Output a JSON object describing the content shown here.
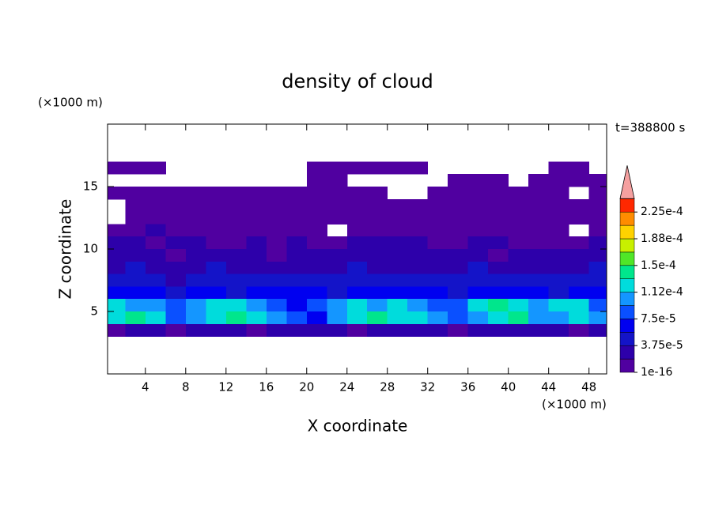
{
  "chart_data": {
    "type": "contour",
    "title": "density of cloud",
    "annotation": "t=388800 s",
    "xlabel": "X coordinate",
    "ylabel": "Z coordinate",
    "x_unit": "(×1000 m)",
    "y_unit": "(×1000 m)",
    "xlim": [
      0.25,
      49.75
    ],
    "ylim": [
      0,
      20
    ],
    "xticks": [
      4,
      8,
      12,
      16,
      20,
      24,
      28,
      32,
      36,
      40,
      44,
      48
    ],
    "yticks": [
      5,
      10,
      15
    ],
    "x": [
      1,
      3,
      5,
      7,
      9,
      11,
      13,
      15,
      17,
      19,
      21,
      23,
      25,
      27,
      29,
      31,
      33,
      35,
      37,
      39,
      41,
      43,
      45,
      47,
      49
    ],
    "y": [
      16.5,
      15.5,
      14.5,
      13.5,
      12.5,
      11.5,
      10.5,
      9.5,
      8.5,
      7.5,
      6.5,
      5.5,
      4.5,
      3.5
    ],
    "values": [
      [
        1e-05,
        1e-05,
        1e-05,
        0,
        0,
        0,
        0,
        0,
        0,
        0,
        1e-05,
        1e-05,
        1e-05,
        1e-05,
        1e-05,
        1e-05,
        0,
        0,
        0,
        0,
        0,
        0,
        1e-05,
        1e-05,
        0
      ],
      [
        0,
        0,
        0,
        0,
        0,
        0,
        0,
        0,
        0,
        0,
        1e-05,
        1e-05,
        0,
        0,
        0,
        0,
        0,
        1e-05,
        1e-05,
        1e-05,
        0,
        1e-05,
        1e-05,
        1e-05,
        1e-05
      ],
      [
        1e-05,
        1e-05,
        1e-05,
        1e-05,
        1e-05,
        1e-05,
        1e-05,
        1e-05,
        1e-05,
        1e-05,
        1e-05,
        1e-05,
        1e-05,
        1e-05,
        0,
        0,
        1e-05,
        1e-05,
        1e-05,
        1e-05,
        1e-05,
        1e-05,
        1e-05,
        0,
        1e-05
      ],
      [
        0,
        1e-05,
        1e-05,
        1e-05,
        1e-05,
        1e-05,
        1e-05,
        1e-05,
        1e-05,
        1e-05,
        1e-05,
        1e-05,
        1e-05,
        1e-05,
        1e-05,
        1e-05,
        1e-05,
        1e-05,
        1e-05,
        1e-05,
        1e-05,
        1e-05,
        1e-05,
        1e-05,
        1e-05
      ],
      [
        0,
        1e-05,
        1e-05,
        1e-05,
        1e-05,
        1e-05,
        1e-05,
        1e-05,
        1e-05,
        1e-05,
        1e-05,
        1e-05,
        1e-05,
        1e-05,
        1e-05,
        1e-05,
        1e-05,
        1e-05,
        1e-05,
        1e-05,
        1e-05,
        1e-05,
        1e-05,
        1e-05,
        1e-05
      ],
      [
        1e-05,
        1e-05,
        2.5e-05,
        1e-05,
        1e-05,
        1e-05,
        1e-05,
        1e-05,
        1e-05,
        1e-05,
        1e-05,
        0,
        1e-05,
        1e-05,
        1e-05,
        1e-05,
        1e-05,
        1e-05,
        1e-05,
        1e-05,
        1e-05,
        1e-05,
        1e-05,
        0,
        1e-05
      ],
      [
        2.5e-05,
        2.5e-05,
        1e-05,
        2.5e-05,
        2.5e-05,
        1e-05,
        1e-05,
        2.5e-05,
        1e-05,
        2.5e-05,
        1e-05,
        1e-05,
        2.5e-05,
        2.5e-05,
        2.5e-05,
        2.5e-05,
        1e-05,
        1e-05,
        2.5e-05,
        2.5e-05,
        1e-05,
        1e-05,
        1e-05,
        1e-05,
        2.5e-05
      ],
      [
        2.5e-05,
        2.5e-05,
        2.5e-05,
        1e-05,
        2.5e-05,
        2.5e-05,
        2.5e-05,
        2.5e-05,
        1e-05,
        2.5e-05,
        2.5e-05,
        2.5e-05,
        2.5e-05,
        2.5e-05,
        2.5e-05,
        2.5e-05,
        2.5e-05,
        2.5e-05,
        2.5e-05,
        1e-05,
        2.5e-05,
        2.5e-05,
        2.5e-05,
        2.5e-05,
        2.5e-05
      ],
      [
        2.5e-05,
        4e-05,
        2.5e-05,
        2.5e-05,
        2.5e-05,
        4e-05,
        2.5e-05,
        2.5e-05,
        2.5e-05,
        2.5e-05,
        2.5e-05,
        2.5e-05,
        4e-05,
        2.5e-05,
        2.5e-05,
        2.5e-05,
        2.5e-05,
        2.5e-05,
        4e-05,
        2.5e-05,
        2.5e-05,
        2.5e-05,
        2.5e-05,
        2.5e-05,
        4e-05
      ],
      [
        4e-05,
        4e-05,
        4e-05,
        2.5e-05,
        4e-05,
        4e-05,
        4e-05,
        4e-05,
        4e-05,
        4e-05,
        4e-05,
        4e-05,
        4e-05,
        4e-05,
        4e-05,
        4e-05,
        4e-05,
        4e-05,
        4e-05,
        4e-05,
        4e-05,
        4e-05,
        4e-05,
        4e-05,
        4e-05
      ],
      [
        6e-05,
        6e-05,
        6e-05,
        4e-05,
        6e-05,
        6e-05,
        4e-05,
        6e-05,
        6e-05,
        6e-05,
        6e-05,
        4e-05,
        6e-05,
        6e-05,
        6e-05,
        6e-05,
        6e-05,
        4e-05,
        6e-05,
        6e-05,
        6e-05,
        6e-05,
        4e-05,
        6e-05,
        6e-05
      ],
      [
        0.00012,
        0.0001,
        0.0001,
        8e-05,
        0.0001,
        0.00012,
        0.00012,
        0.0001,
        8e-05,
        6e-05,
        8e-05,
        0.0001,
        0.00012,
        0.0001,
        0.00012,
        0.0001,
        8e-05,
        8e-05,
        0.00012,
        0.00014,
        0.00012,
        0.0001,
        0.00012,
        0.00012,
        8e-05
      ],
      [
        0.00012,
        0.00014,
        0.00012,
        8e-05,
        0.0001,
        0.00012,
        0.00014,
        0.00012,
        0.0001,
        8e-05,
        6e-05,
        0.0001,
        0.00012,
        0.00014,
        0.00012,
        0.00012,
        0.0001,
        8e-05,
        0.0001,
        0.00012,
        0.00014,
        0.0001,
        0.0001,
        0.00012,
        0.0001
      ],
      [
        1e-05,
        2.5e-05,
        2.5e-05,
        1e-05,
        2.5e-05,
        2.5e-05,
        2.5e-05,
        1e-05,
        2.5e-05,
        2.5e-05,
        2.5e-05,
        2.5e-05,
        1e-05,
        2.5e-05,
        2.5e-05,
        2.5e-05,
        2.5e-05,
        1e-05,
        2.5e-05,
        2.5e-05,
        2.5e-05,
        2.5e-05,
        2.5e-05,
        1e-05,
        2.5e-05
      ]
    ],
    "levels": [
      1e-16,
      1.875e-05,
      3.75e-05,
      5.625e-05,
      7.5e-05,
      9.375e-05,
      0.0001125,
      0.00013125,
      0.00015,
      0.00016875,
      0.0001875,
      0.00020625,
      0.000225,
      0.00024375
    ],
    "colors": [
      "#5000a0",
      "#2d00aa",
      "#1414c8",
      "#0000f0",
      "#0a50ff",
      "#1496ff",
      "#00dcdc",
      "#00e68c",
      "#50e628",
      "#c8f000",
      "#ffd200",
      "#ff8c00",
      "#ff2800"
    ],
    "over_color": "#f5a0a0",
    "cbar_ticks": [
      1e-16,
      {
        "value": 3.75e-05,
        "label": "3.75e-5"
      },
      {
        "value": 7.5e-05,
        "label": "7.5e-5"
      },
      {
        "value": 0.0001125,
        "label": "1.12e-4"
      },
      {
        "value": 0.00015,
        "label": "1.5e-4"
      },
      {
        "value": 0.0001875,
        "label": "1.88e-4"
      },
      {
        "value": 0.000225,
        "label": "2.25e-4"
      }
    ]
  }
}
